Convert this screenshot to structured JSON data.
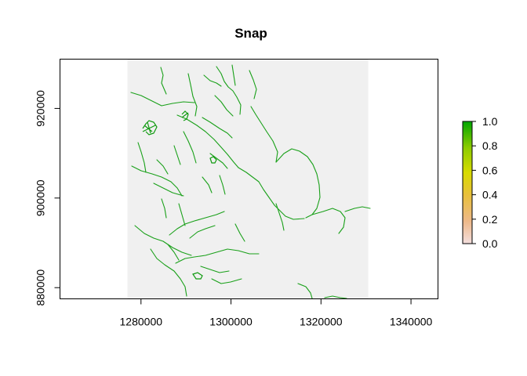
{
  "chart_data": {
    "type": "heatmap",
    "title": "Snap",
    "xlabel": "",
    "ylabel": "",
    "xlim": [
      1262000,
      1346000
    ],
    "ylim": [
      877500,
      931000
    ],
    "x_ticks": [
      {
        "value": 1280000,
        "label": "1280000"
      },
      {
        "value": 1300000,
        "label": "1300000"
      },
      {
        "value": 1320000,
        "label": "1320000"
      },
      {
        "value": 1340000,
        "label": "1340000"
      }
    ],
    "y_ticks": [
      {
        "value": 880000,
        "label": "880000"
      },
      {
        "value": 900000,
        "label": "900000"
      },
      {
        "value": 920000,
        "label": "920000"
      }
    ],
    "raster_extent": {
      "xmin": 1277000,
      "xmax": 1330500,
      "ymin": 877500,
      "ymax": 931000
    },
    "raster_background_value": 0,
    "network_value": 1,
    "legend": {
      "min": 0,
      "max": 1,
      "ticks": [
        "0.0",
        "0.2",
        "0.4",
        "0.6",
        "0.8",
        "1.0"
      ],
      "palette": [
        "#f3dede",
        "#eeb98a",
        "#e8c03a",
        "#d8db00",
        "#8fcc00",
        "#00a600"
      ],
      "placement": "right"
    },
    "colors": {
      "raster_background": "#f0f0f0",
      "network": "#19a019"
    }
  }
}
